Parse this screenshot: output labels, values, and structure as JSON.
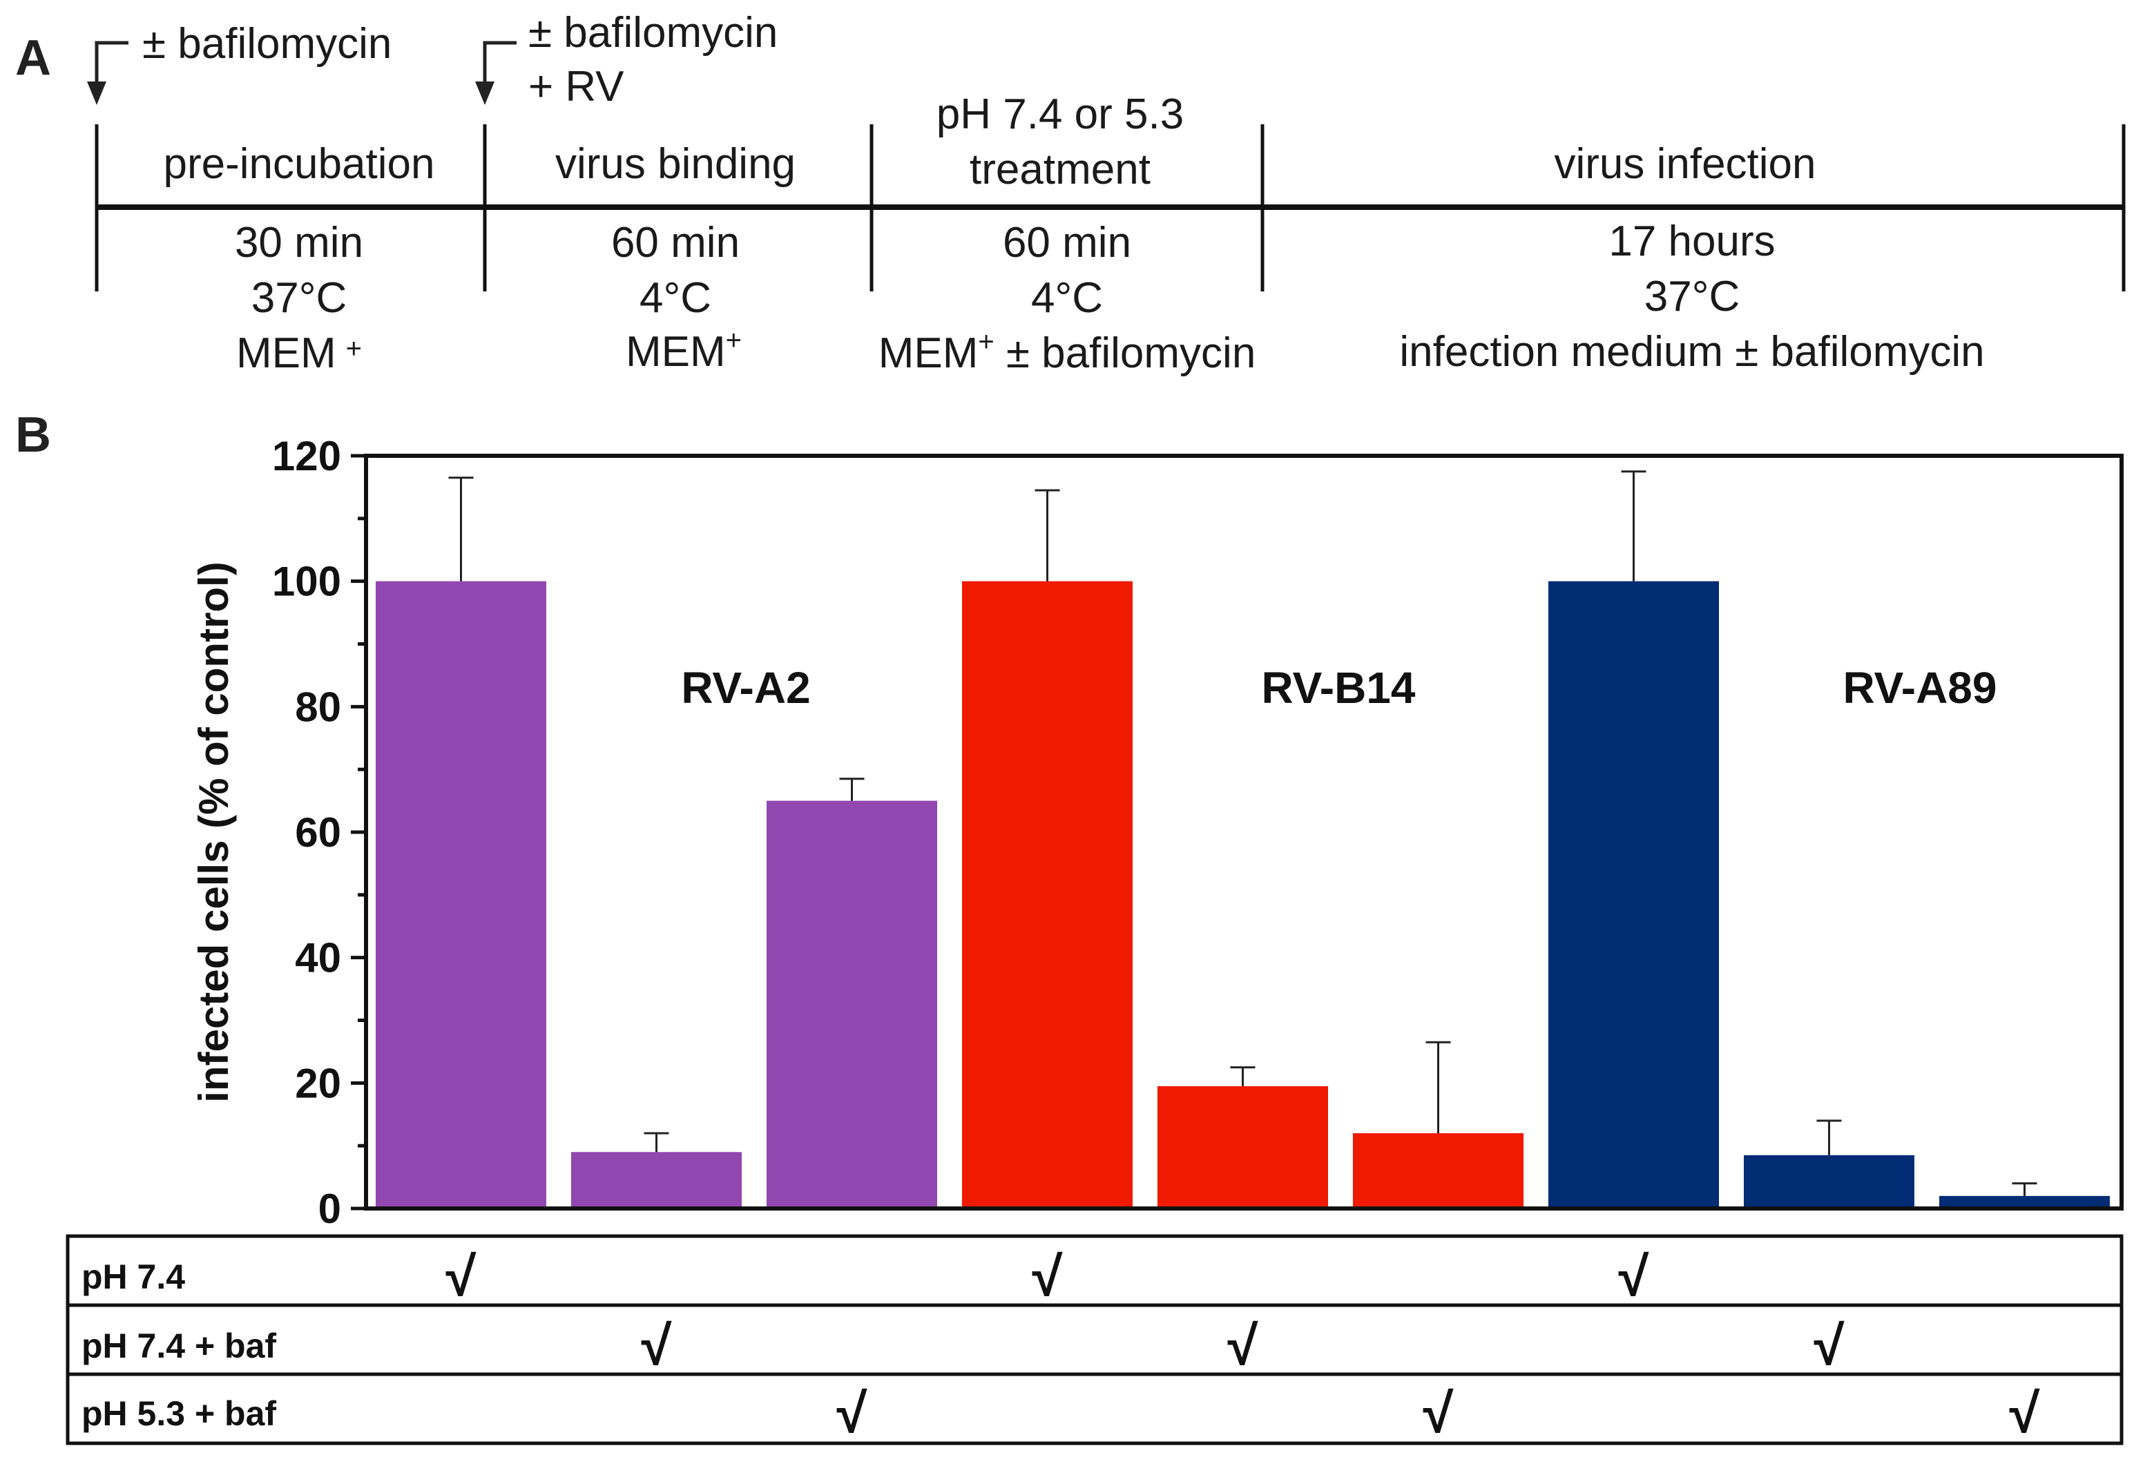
{
  "panels": {
    "a": "A",
    "b": "B"
  },
  "timeline": {
    "arrows": [
      {
        "label_lines": [
          "± bafilomycin"
        ]
      },
      {
        "label_lines": [
          "± bafilomycin",
          "+ RV"
        ]
      }
    ],
    "steps": [
      {
        "above": [
          "pre-incubation"
        ],
        "below": [
          {
            "text": "30 min",
            "sup": ""
          },
          {
            "text": "37°C",
            "sup": ""
          },
          {
            "text": "MEM",
            "sup": "+",
            "rest": ""
          }
        ]
      },
      {
        "above": [
          "virus binding"
        ],
        "below": [
          {
            "text": "60 min",
            "sup": ""
          },
          {
            "text": "4°C",
            "sup": ""
          },
          {
            "text": "MEM",
            "sup": "+",
            "rest": ""
          }
        ]
      },
      {
        "above": [
          "pH 7.4 or 5.3",
          "treatment"
        ],
        "below": [
          {
            "text": "60 min",
            "sup": ""
          },
          {
            "text": "4°C",
            "sup": ""
          },
          {
            "text": "MEM",
            "sup": "+",
            "rest": " ± bafilomycin"
          }
        ]
      },
      {
        "above": [
          "virus infection"
        ],
        "below": [
          {
            "text": "17 hours",
            "sup": ""
          },
          {
            "text": "37°C",
            "sup": ""
          },
          {
            "text": "infection medium ± bafilomycin",
            "sup": ""
          }
        ]
      }
    ]
  },
  "chart_data": {
    "type": "bar",
    "title": "",
    "xlabel": "",
    "ylabel": "infected cells (% of control)",
    "ylim": [
      0,
      120
    ],
    "y_ticks": [
      0,
      20,
      40,
      60,
      80,
      100,
      120
    ],
    "groups": [
      "RV-A2",
      "RV-B14",
      "RV-A89"
    ],
    "conditions": [
      "pH 7.4",
      "pH 7.4 + baf",
      "pH 5.3 + baf"
    ],
    "series": [
      {
        "name": "RV-A2",
        "color": "#9147b0",
        "values": [
          100,
          9,
          65
        ],
        "errors": [
          16.5,
          3,
          3.5
        ]
      },
      {
        "name": "RV-B14",
        "color": "#ef1a00",
        "values": [
          100,
          19.5,
          12
        ],
        "errors": [
          14.5,
          3,
          14.5
        ]
      },
      {
        "name": "RV-A89",
        "color": "#022c74",
        "values": [
          100,
          8.5,
          2
        ],
        "errors": [
          17.5,
          5.5,
          2
        ]
      }
    ],
    "check_mark": "√"
  }
}
